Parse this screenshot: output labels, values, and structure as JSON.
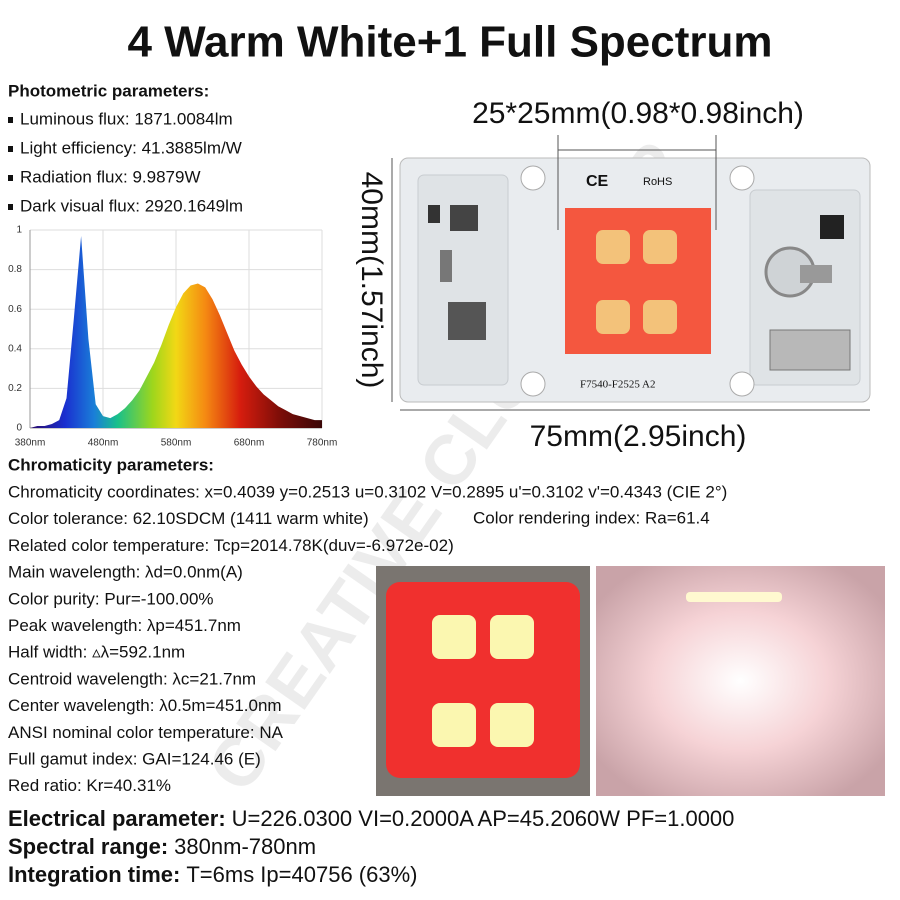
{
  "title": "4 Warm White+1 Full Spectrum",
  "photometric": {
    "heading": "Photometric parameters:",
    "items": [
      "Luminous flux: 1871.0084lm",
      "Light efficiency: 41.3885lm/W",
      "Radiation flux: 9.9879W",
      "Dark visual flux: 2920.1649lm"
    ]
  },
  "spectrum": {
    "type": "area",
    "x": [
      380,
      390,
      400,
      410,
      420,
      430,
      440,
      450,
      460,
      470,
      480,
      490,
      500,
      510,
      520,
      530,
      540,
      550,
      560,
      570,
      580,
      590,
      600,
      610,
      620,
      630,
      640,
      650,
      660,
      670,
      680,
      690,
      700,
      710,
      720,
      730,
      740,
      750,
      760,
      770,
      780
    ],
    "values": [
      0,
      0.01,
      0.01,
      0.02,
      0.04,
      0.15,
      0.55,
      0.97,
      0.45,
      0.12,
      0.06,
      0.05,
      0.07,
      0.1,
      0.14,
      0.19,
      0.26,
      0.33,
      0.42,
      0.52,
      0.61,
      0.68,
      0.72,
      0.73,
      0.71,
      0.65,
      0.57,
      0.48,
      0.39,
      0.32,
      0.26,
      0.21,
      0.17,
      0.14,
      0.11,
      0.09,
      0.07,
      0.06,
      0.05,
      0.04,
      0.04
    ],
    "xlim": [
      380,
      780
    ],
    "ylim": [
      0,
      1
    ],
    "xticks": [
      {
        "value": 380,
        "label": "380nm"
      },
      {
        "value": 480,
        "label": "480nm"
      },
      {
        "value": 580,
        "label": "580nm"
      },
      {
        "value": 680,
        "label": "680nm"
      },
      {
        "value": 780,
        "label": "780nm"
      }
    ],
    "yticks": [
      0,
      0.2,
      0.4,
      0.6,
      0.8,
      1
    ],
    "grid": true
  },
  "dimensions": {
    "top": "25*25mm(0.98*0.98inch)",
    "side": "40mm(1.57inch)",
    "bottom": "75mm(2.95inch)"
  },
  "board_labels": {
    "ce": "CE",
    "rohs": "RoHS",
    "model": "F7540-F2525  A2"
  },
  "chromaticity": {
    "heading": "Chromaticity parameters:",
    "lines": [
      "Chromaticity coordinates: x=0.4039 y=0.2513 u=0.3102 V=0.2895 u'=0.3102 v'=0.4343 (CIE 2°)",
      "Color tolerance: 62.10SDCM (1411 warm white)",
      "Related color temperature: Tcp=2014.78K(duv=-6.972e-02)",
      "Main wavelength: λd=0.0nm(A)",
      "Color purity: Pur=-100.00%",
      "Peak wavelength: λp=451.7nm",
      "Half width: ▵λ=592.1nm",
      "Centroid wavelength: λc=21.7nm",
      "Center wavelength: λ0.5m=451.0nm",
      "ANSI nominal color temperature: NA",
      "Full gamut index: GAI=124.46 (E)",
      "Red ratio: Kr=40.31%"
    ],
    "extra": "Color rendering index: Ra=61.4"
  },
  "electrical": [
    {
      "label": "Electrical parameter:",
      "value": "U=226.0300  VI=0.2000A  AP=45.2060W  PF=1.0000"
    },
    {
      "label": "Spectral range:",
      "value": "380nm-780nm"
    },
    {
      "label": "Integration time:",
      "value": "T=6ms  Ip=40756 (63%)"
    }
  ],
  "watermark": "CREATIVE CLUB STOP"
}
